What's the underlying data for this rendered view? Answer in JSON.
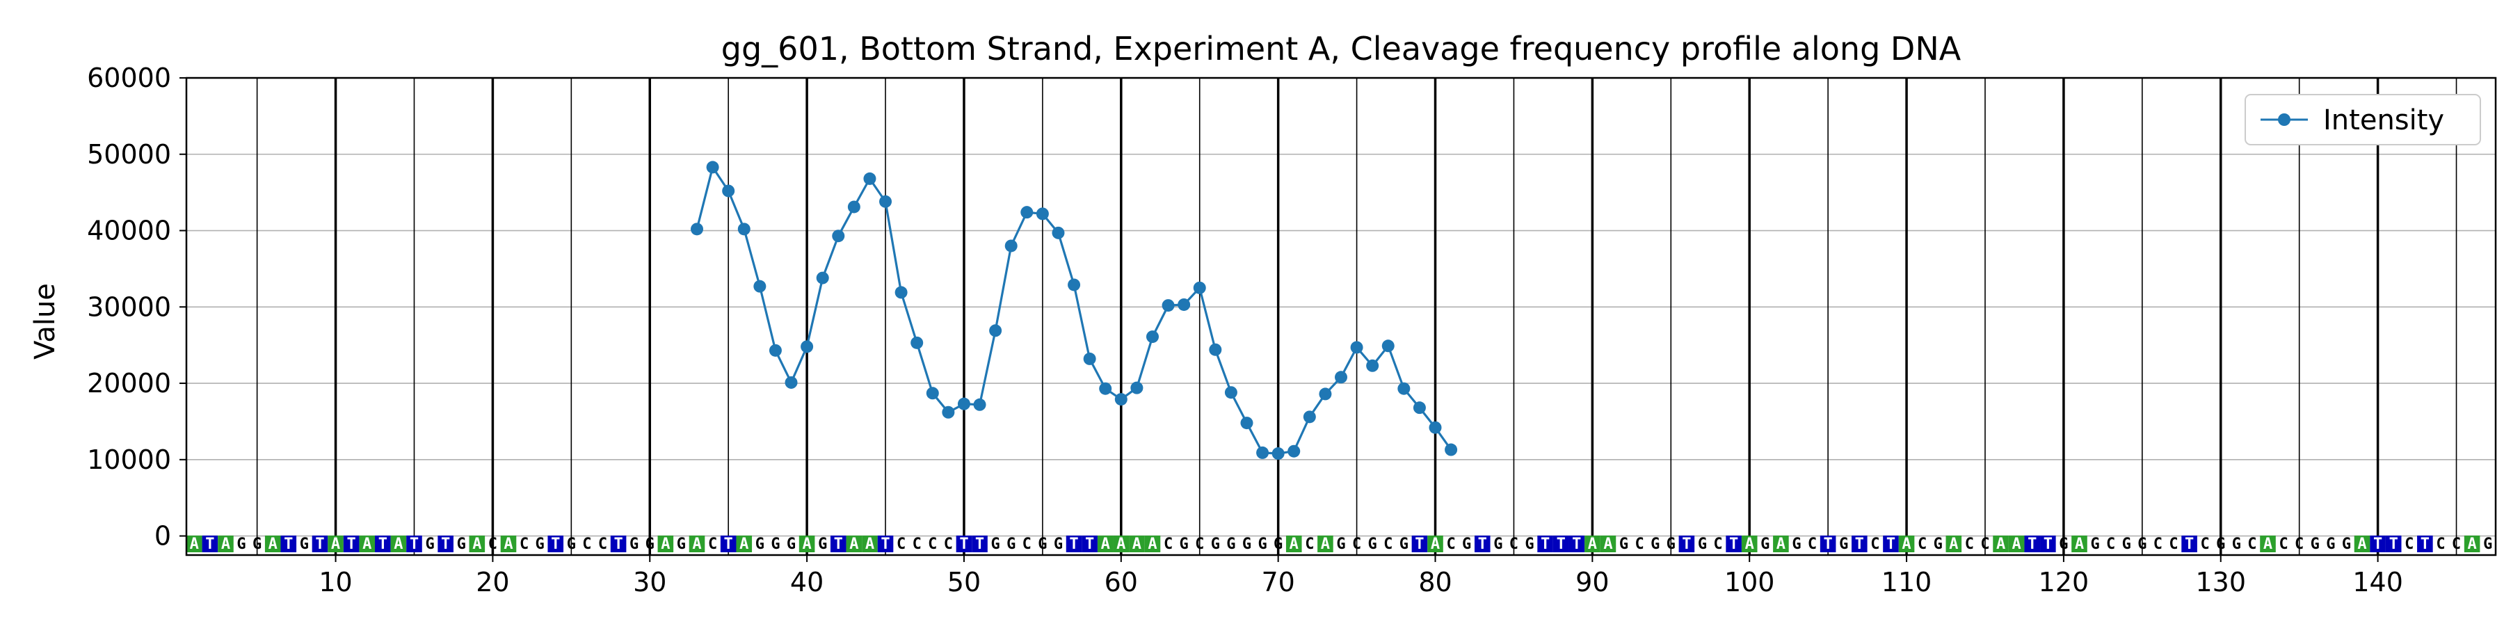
{
  "chart_data": {
    "type": "line",
    "title": "gg_601, Bottom Strand, Experiment A, Cleavage frequency profile along DNA",
    "ylabel": "Value",
    "xlabel": "",
    "xlim": [
      0.5,
      147.5
    ],
    "ylim": [
      -2500,
      60000
    ],
    "yticks": [
      0,
      10000,
      20000,
      30000,
      40000,
      50000,
      60000
    ],
    "xticks": [
      10,
      20,
      30,
      40,
      50,
      60,
      70,
      80,
      90,
      100,
      110,
      120,
      130,
      140
    ],
    "grid": true,
    "legend": "top-right",
    "sequence": "ATAGGATGTATATATGTGACACGTGCCTGGAGACTAGGGAGTAATCCCCTTGGCGGTTAAAACGCGGGGGACAGCGCGTACGTGCGTTTAAGCGGTGCTAGAGCTGTCTACGACCAATTGAGCGGCCTCGGCACCGGGATTCTCCAG",
    "series": [
      {
        "name": "Intensity",
        "color": "#1f77b4",
        "x": [
          33,
          34,
          35,
          36,
          37,
          38,
          39,
          40,
          41,
          42,
          43,
          44,
          45,
          46,
          47,
          48,
          49,
          50,
          51,
          52,
          53,
          54,
          55,
          56,
          57,
          58,
          59,
          60,
          61,
          62,
          63,
          64,
          65,
          66,
          67,
          68,
          69,
          70,
          71,
          72,
          73,
          74,
          75,
          76,
          77,
          78,
          79,
          80,
          81
        ],
        "values": [
          40200,
          48300,
          45200,
          40200,
          32700,
          24300,
          20100,
          24800,
          33800,
          39300,
          43100,
          46800,
          43800,
          31900,
          25300,
          18700,
          16200,
          17300,
          17200,
          26900,
          38000,
          42400,
          42200,
          39700,
          32900,
          23200,
          19300,
          17900,
          19400,
          26100,
          30200,
          30300,
          32500,
          24400,
          18800,
          14800,
          10900,
          10800,
          11100,
          15600,
          18600,
          20800,
          24700,
          22300,
          24900,
          19300,
          16800,
          14200,
          11300
        ]
      }
    ]
  }
}
